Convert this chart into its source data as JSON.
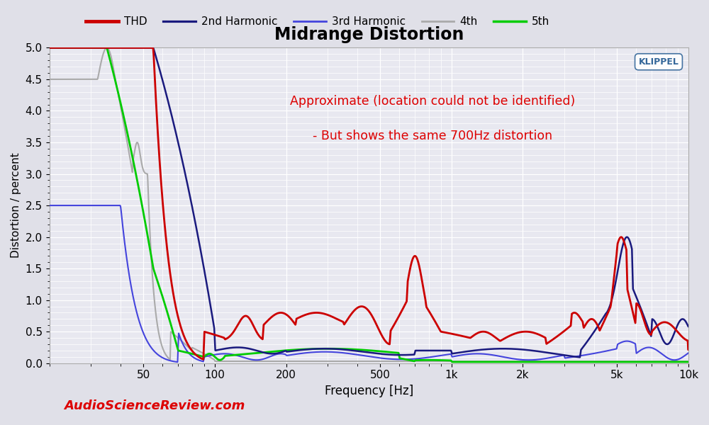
{
  "title": "Midrange Distortion",
  "xlabel": "Frequency [Hz]",
  "ylabel": "Distortion / percent",
  "xlim": [
    20,
    10000
  ],
  "ylim": [
    0,
    5.0
  ],
  "yticks": [
    0,
    0.5,
    1.0,
    1.5,
    2.0,
    2.5,
    3.0,
    3.5,
    4.0,
    4.5,
    5.0
  ],
  "xtick_labels": [
    "50",
    "100",
    "200",
    "500",
    "1k",
    "2k",
    "5k",
    "10k"
  ],
  "xtick_vals": [
    50,
    100,
    200,
    500,
    1000,
    2000,
    5000,
    10000
  ],
  "annotation1": "Approximate (location could not be identified)",
  "annotation2": "- But shows the same 700Hz distortion",
  "annotation_color": "#dd0000",
  "watermark": "AudioScienceReview.com",
  "watermark_color": "#dd0000",
  "background_color": "#e0e0e8",
  "plot_bg_color": "#e8e8f0",
  "title_fontsize": 17,
  "legend_entries": [
    "THD",
    "2nd Harmonic",
    "3rd Harmonic",
    "4th",
    "5th"
  ],
  "line_colors": [
    "#cc0000",
    "#1a1a7e",
    "#4444dd",
    "#aaaaaa",
    "#00cc00"
  ],
  "line_widths": [
    2.0,
    1.8,
    1.5,
    1.5,
    2.0
  ]
}
